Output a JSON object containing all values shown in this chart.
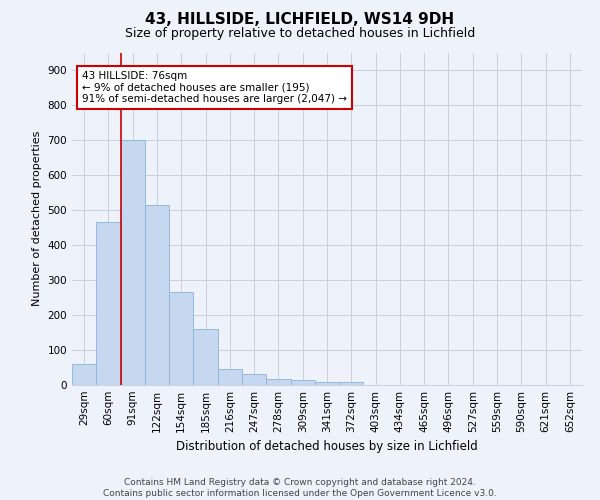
{
  "title": "43, HILLSIDE, LICHFIELD, WS14 9DH",
  "subtitle": "Size of property relative to detached houses in Lichfield",
  "xlabel": "Distribution of detached houses by size in Lichfield",
  "ylabel": "Number of detached properties",
  "footnote1": "Contains HM Land Registry data © Crown copyright and database right 2024.",
  "footnote2": "Contains public sector information licensed under the Open Government Licence v3.0.",
  "categories": [
    "29sqm",
    "60sqm",
    "91sqm",
    "122sqm",
    "154sqm",
    "185sqm",
    "216sqm",
    "247sqm",
    "278sqm",
    "309sqm",
    "341sqm",
    "372sqm",
    "403sqm",
    "434sqm",
    "465sqm",
    "496sqm",
    "527sqm",
    "559sqm",
    "590sqm",
    "621sqm",
    "652sqm"
  ],
  "values": [
    60,
    465,
    700,
    515,
    265,
    160,
    46,
    32,
    17,
    14,
    9,
    8,
    0,
    0,
    0,
    0,
    0,
    0,
    0,
    0,
    0
  ],
  "bar_color": "#c5d8ef",
  "bar_edge_color": "#8ab4d8",
  "background_color": "#eef2fb",
  "grid_color": "#c8cfe0",
  "vline_color": "#cc0000",
  "vline_x": 1.5,
  "annotation_line1": "43 HILLSIDE: 76sqm",
  "annotation_line2": "← 9% of detached houses are smaller (195)",
  "annotation_line3": "91% of semi-detached houses are larger (2,047) →",
  "annotation_box_color": "#cc0000",
  "ylim": [
    0,
    950
  ],
  "yticks": [
    0,
    100,
    200,
    300,
    400,
    500,
    600,
    700,
    800,
    900
  ],
  "title_fontsize": 11,
  "subtitle_fontsize": 9,
  "ylabel_fontsize": 8,
  "xlabel_fontsize": 8.5,
  "tick_fontsize": 7.5,
  "footnote_fontsize": 6.5
}
